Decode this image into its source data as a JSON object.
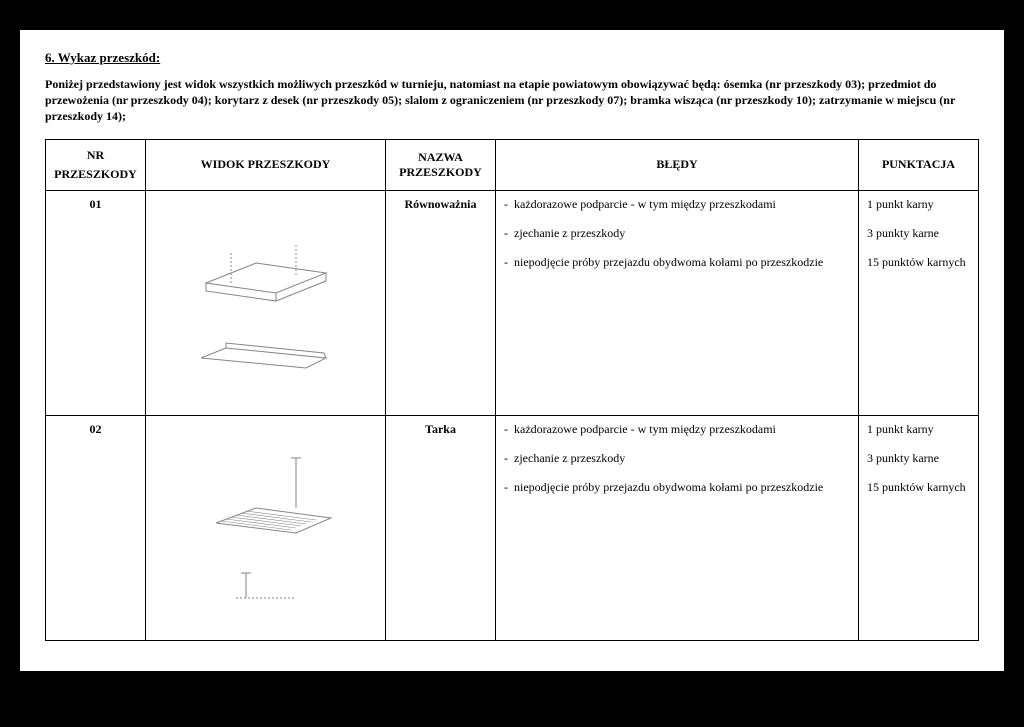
{
  "section_title": "6. Wykaz przeszkód:",
  "intro": "Poniżej przedstawiony jest widok wszystkich możliwych przeszkód w turnieju, natomiast na etapie powiatowym obowiązywać będą: ósemka (nr przeszkody 03); przedmiot do przewożenia (nr przeszkody 04); korytarz z desek (nr przeszkody 05); slalom z ograniczeniem (nr przeszkody 07); bramka wisząca (nr przeszkody 10); zatrzymanie w miejscu (nr przeszkody 14);",
  "headers": {
    "nr": "NR PRZESZKODY",
    "view": "WIDOK PRZESZKODY",
    "name": "NAZWA PRZESZKODY",
    "errors": "BŁĘDY",
    "points": "PUNKTACJA"
  },
  "rows": [
    {
      "nr": "01",
      "name": "Równoważnia",
      "errors": [
        "każdorazowe podparcie - w tym między przeszkodami",
        "zjechanie z przeszkody",
        "niepodjęcie próby przejazdu obydwoma kołami po przeszkodzie"
      ],
      "points": [
        "1 punkt karny",
        "3 punkty karne",
        "15 punktów karnych"
      ]
    },
    {
      "nr": "02",
      "name": "Tarka",
      "errors": [
        "każdorazowe podparcie - w tym między przeszkodami",
        "zjechanie z przeszkody",
        "niepodjęcie próby przejazdu obydwoma kołami po przeszkodzie"
      ],
      "points": [
        "1 punkt karny",
        "3 punkty karne",
        "15 punktów karnych"
      ]
    }
  ]
}
